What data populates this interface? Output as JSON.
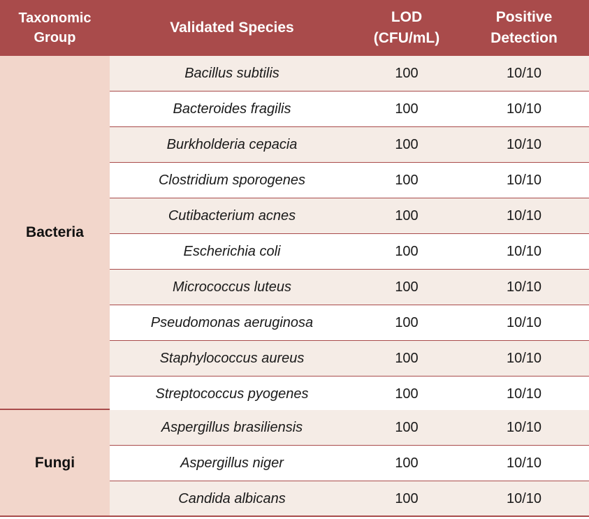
{
  "header": {
    "group_line1": "Taxonomic",
    "group_line2": "Group",
    "species": "Validated Species",
    "lod_line1": "LOD",
    "lod_line2": "(CFU/mL)",
    "pos_line1": "Positive",
    "pos_line2": "Detection"
  },
  "groups": [
    {
      "name": "Bacteria"
    },
    {
      "name": "Fungi"
    }
  ],
  "rows": [
    {
      "species": "Bacillus subtilis",
      "lod": "100",
      "positive": "10/10"
    },
    {
      "species": "Bacteroides fragilis",
      "lod": "100",
      "positive": "10/10"
    },
    {
      "species": "Burkholderia cepacia",
      "lod": "100",
      "positive": "10/10"
    },
    {
      "species": "Clostridium sporogenes",
      "lod": "100",
      "positive": "10/10"
    },
    {
      "species": "Cutibacterium acnes",
      "lod": "100",
      "positive": "10/10"
    },
    {
      "species": "Escherichia coli",
      "lod": "100",
      "positive": "10/10"
    },
    {
      "species": "Micrococcus luteus",
      "lod": "100",
      "positive": "10/10"
    },
    {
      "species": "Pseudomonas aeruginosa",
      "lod": "100",
      "positive": "10/10"
    },
    {
      "species": "Staphylococcus aureus",
      "lod": "100",
      "positive": "10/10"
    },
    {
      "species": "Streptococcus pyogenes",
      "lod": "100",
      "positive": "10/10"
    },
    {
      "species": "Aspergillus brasiliensis",
      "lod": "100",
      "positive": "10/10"
    },
    {
      "species": "Aspergillus niger",
      "lod": "100",
      "positive": "10/10"
    },
    {
      "species": "Candida albicans",
      "lod": "100",
      "positive": "10/10"
    }
  ]
}
